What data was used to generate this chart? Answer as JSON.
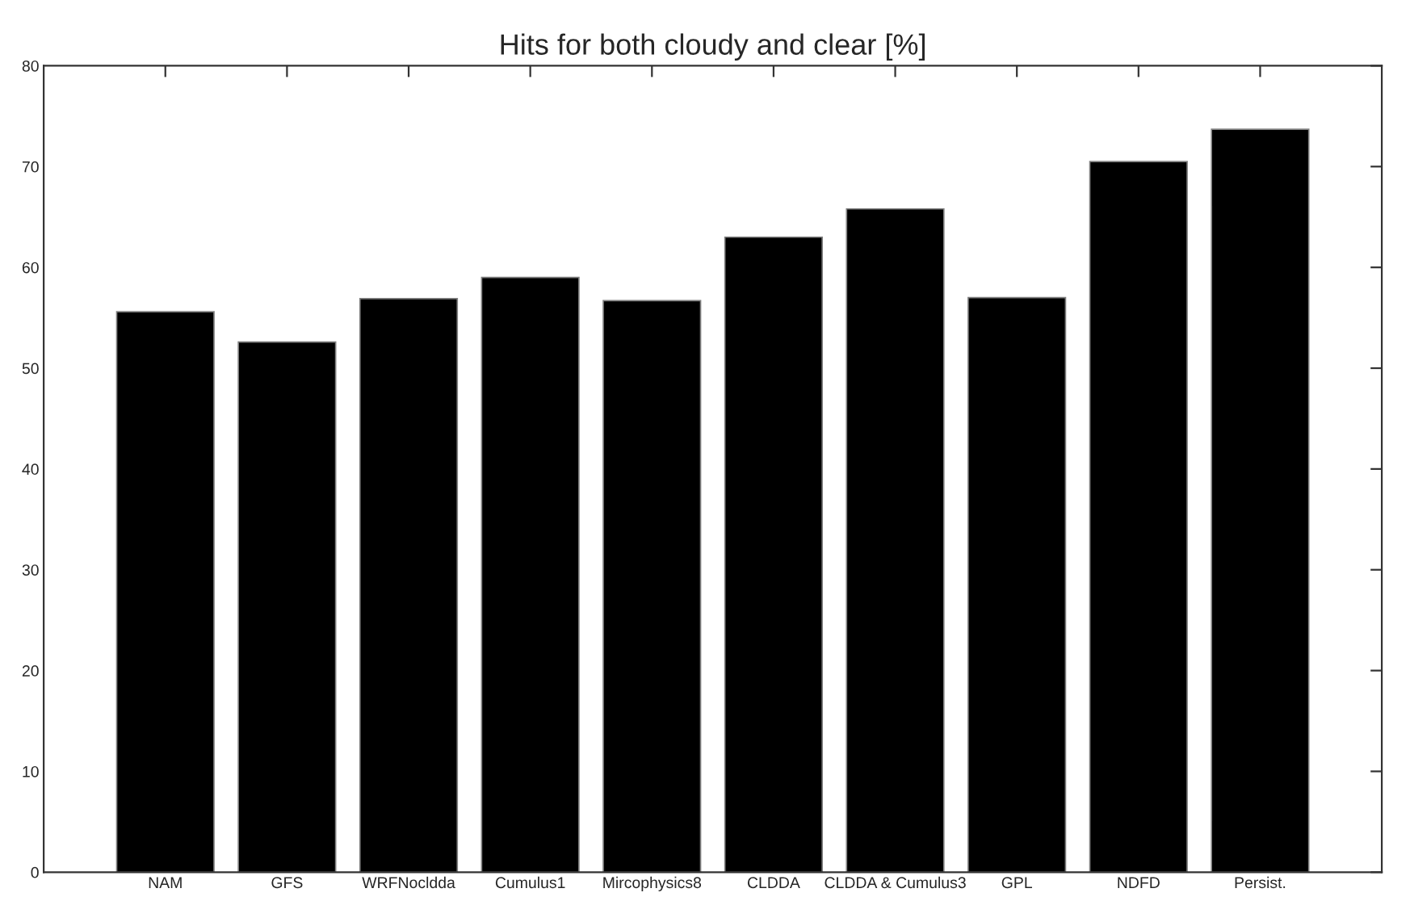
{
  "chart_data": {
    "type": "bar",
    "title": "Hits for both cloudy and clear [%]",
    "categories": [
      "NAM",
      "GFS",
      "WRFNocldda",
      "Cumulus1",
      "Mircophysics8",
      "CLDDA",
      "CLDDA & Cumulus3",
      "GPL",
      "NDFD",
      "Persist."
    ],
    "values": [
      55.6,
      52.6,
      56.9,
      59.0,
      56.7,
      63.0,
      65.8,
      57.0,
      70.5,
      73.7
    ],
    "color": "#000000",
    "ylim": [
      0,
      80
    ],
    "yticks": [
      0,
      10,
      20,
      30,
      40,
      50,
      60,
      70,
      80
    ],
    "grid": false,
    "legend": false
  }
}
